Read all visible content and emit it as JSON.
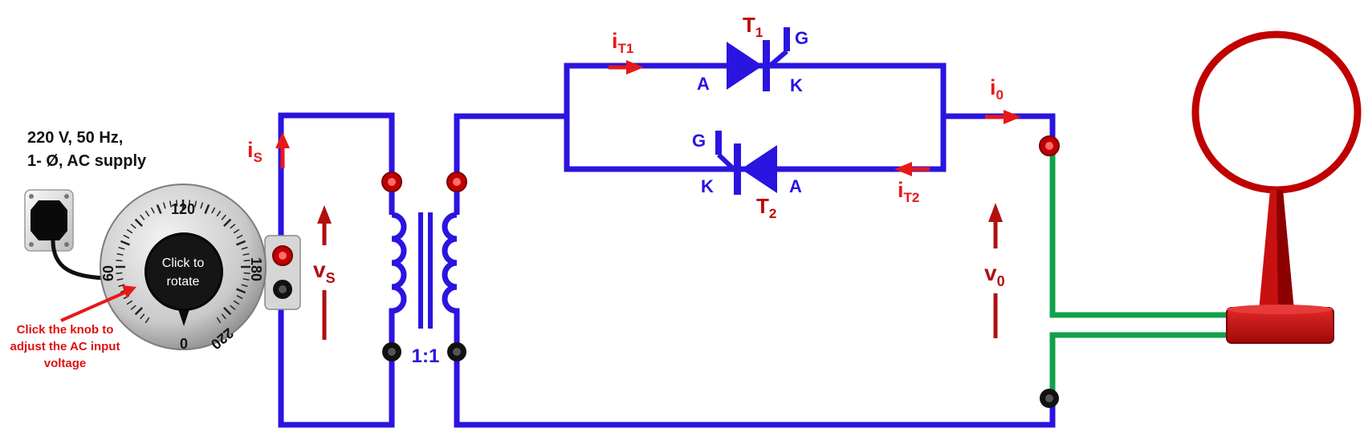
{
  "supply": {
    "line1": "220 V, 50 Hz,",
    "line2": "1- Ø, AC supply"
  },
  "knob": {
    "label": "Click to rotate",
    "dial": {
      "t0": "0",
      "t60": "60",
      "t120": "120",
      "t180": "180",
      "t220": "220"
    }
  },
  "hint": {
    "text": "Click the knob to adjust the AC input voltage"
  },
  "transformer": {
    "ratio": "1:1"
  },
  "thyristors": {
    "t1": {
      "name": "T",
      "sub": "1",
      "anode": "A",
      "cathode": "K",
      "gate": "G"
    },
    "t2": {
      "name": "T",
      "sub": "2",
      "anode": "A",
      "cathode": "K",
      "gate": "G"
    }
  },
  "currents": {
    "is": {
      "main": "i",
      "sub": "S"
    },
    "it1": {
      "main": "i",
      "sub": "T1"
    },
    "it2": {
      "main": "i",
      "sub": "T2"
    },
    "io": {
      "main": "i",
      "sub": "0"
    }
  },
  "voltages": {
    "vs": {
      "main": "v",
      "sub": "S"
    },
    "vo": {
      "main": "v",
      "sub": "0"
    }
  },
  "colors": {
    "wire": "#2a14e0",
    "terminal_red": "#c00000",
    "arrow_red": "#e81818",
    "dark_red": "#b01010",
    "probe_green": "#12a14a"
  }
}
